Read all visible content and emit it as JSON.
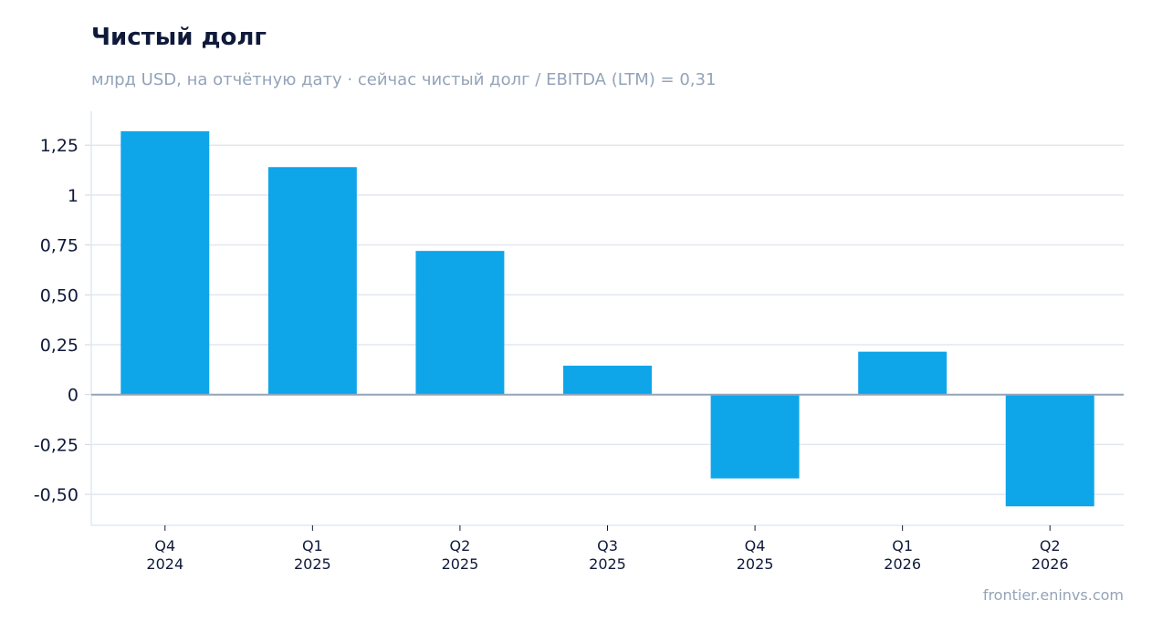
{
  "title": "Чистый долг",
  "subtitle": "млрд USD, на отчётную дату · сейчас чистый долг / EBITDA (LTM) = 0,31",
  "source": "frontier.eninvs.com",
  "colors": {
    "bar": "#0ea5e9",
    "grid": "#e2e8f0",
    "zero_line": "#94a3b8",
    "text": "#0f1a3a",
    "muted": "#94a3b8"
  },
  "chart_data": {
    "type": "bar",
    "title": "Чистый долг",
    "subtitle": "млрд USD, на отчётную дату · сейчас чистый долг / EBITDA (LTM) = 0,31",
    "xlabel": "",
    "ylabel": "",
    "categories": [
      [
        "Q4",
        "2024"
      ],
      [
        "Q1",
        "2025"
      ],
      [
        "Q2",
        "2025"
      ],
      [
        "Q3",
        "2025"
      ],
      [
        "Q4",
        "2025"
      ],
      [
        "Q1",
        "2026"
      ],
      [
        "Q2",
        "2026"
      ]
    ],
    "values": [
      1.32,
      1.14,
      0.72,
      0.145,
      -0.42,
      0.215,
      -0.56
    ],
    "ylim": [
      -0.655,
      1.42
    ],
    "yticks": [
      1.25,
      1,
      0.75,
      0.5,
      0.25,
      0,
      -0.25,
      -0.5
    ],
    "ytick_labels": [
      "1,25",
      "1",
      "0,75",
      "0,50",
      "0,25",
      "0",
      "-0,25",
      "-0,50"
    ],
    "grid": true,
    "legend": "none"
  }
}
